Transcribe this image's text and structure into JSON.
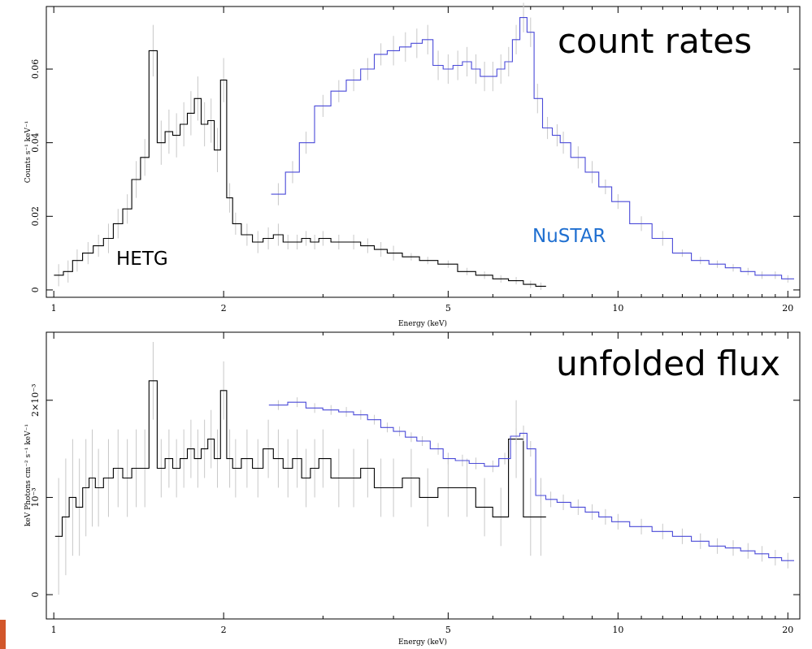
{
  "chart_data": [
    {
      "type": "line",
      "annotation": "count rates",
      "xlabel": "Energy (keV)",
      "ylabel": "Counts s⁻¹ keV⁻¹",
      "x_scale": "log",
      "xlim": [
        0.97,
        21
      ],
      "ylim": [
        -0.002,
        0.077
      ],
      "x_ticks": [
        1,
        2,
        5,
        10,
        20
      ],
      "y_ticks": [
        0,
        0.02,
        0.04,
        0.06
      ],
      "y_tick_labels": [
        "0",
        "0.02",
        "0.04",
        "0.06"
      ],
      "series": [
        {
          "name": "HETG",
          "color": "#000000",
          "x": [
            1.02,
            1.06,
            1.1,
            1.15,
            1.2,
            1.25,
            1.3,
            1.35,
            1.4,
            1.45,
            1.5,
            1.55,
            1.6,
            1.65,
            1.7,
            1.75,
            1.8,
            1.85,
            1.9,
            1.95,
            2.0,
            2.05,
            2.1,
            2.2,
            2.3,
            2.4,
            2.5,
            2.6,
            2.7,
            2.8,
            2.9,
            3.0,
            3.2,
            3.4,
            3.6,
            3.8,
            4.0,
            4.3,
            4.6,
            5.0,
            5.4,
            5.8,
            6.2,
            6.6,
            7.0,
            7.3
          ],
          "y": [
            0.004,
            0.005,
            0.008,
            0.01,
            0.012,
            0.014,
            0.018,
            0.022,
            0.03,
            0.036,
            0.065,
            0.04,
            0.043,
            0.042,
            0.045,
            0.048,
            0.052,
            0.045,
            0.046,
            0.038,
            0.057,
            0.025,
            0.018,
            0.015,
            0.013,
            0.014,
            0.015,
            0.013,
            0.013,
            0.014,
            0.013,
            0.014,
            0.013,
            0.013,
            0.012,
            0.011,
            0.01,
            0.009,
            0.008,
            0.007,
            0.005,
            0.004,
            0.003,
            0.0025,
            0.0015,
            0.001
          ],
          "err": [
            0.003,
            0.003,
            0.003,
            0.003,
            0.003,
            0.004,
            0.004,
            0.004,
            0.005,
            0.005,
            0.007,
            0.006,
            0.006,
            0.006,
            0.006,
            0.006,
            0.006,
            0.006,
            0.006,
            0.006,
            0.006,
            0.004,
            0.003,
            0.003,
            0.003,
            0.003,
            0.003,
            0.002,
            0.002,
            0.002,
            0.002,
            0.002,
            0.002,
            0.002,
            0.002,
            0.002,
            0.002,
            0.001,
            0.001,
            0.001,
            0.001,
            0.001,
            0.001,
            0.001,
            0.001,
            0.001
          ]
        },
        {
          "name": "NuSTAR",
          "color": "#4a4ad8",
          "x": [
            2.5,
            2.65,
            2.8,
            3.0,
            3.2,
            3.4,
            3.6,
            3.8,
            4.0,
            4.2,
            4.4,
            4.6,
            4.8,
            5.0,
            5.2,
            5.4,
            5.6,
            5.8,
            6.0,
            6.2,
            6.4,
            6.6,
            6.8,
            7.0,
            7.2,
            7.5,
            7.8,
            8.0,
            8.5,
            9.0,
            9.5,
            10.0,
            11.0,
            12.0,
            13.0,
            14.0,
            15.0,
            16.0,
            17.0,
            18.0,
            19.0,
            20.0
          ],
          "y": [
            0.026,
            0.032,
            0.04,
            0.05,
            0.054,
            0.057,
            0.06,
            0.064,
            0.065,
            0.066,
            0.067,
            0.068,
            0.061,
            0.06,
            0.061,
            0.062,
            0.06,
            0.058,
            0.058,
            0.06,
            0.062,
            0.068,
            0.074,
            0.07,
            0.052,
            0.044,
            0.042,
            0.04,
            0.036,
            0.032,
            0.028,
            0.024,
            0.018,
            0.014,
            0.01,
            0.008,
            0.007,
            0.006,
            0.005,
            0.004,
            0.004,
            0.003
          ],
          "err": [
            0.003,
            0.003,
            0.003,
            0.003,
            0.003,
            0.003,
            0.003,
            0.003,
            0.004,
            0.004,
            0.004,
            0.004,
            0.004,
            0.004,
            0.004,
            0.004,
            0.004,
            0.004,
            0.004,
            0.004,
            0.004,
            0.004,
            0.004,
            0.004,
            0.004,
            0.003,
            0.003,
            0.003,
            0.003,
            0.003,
            0.002,
            0.002,
            0.002,
            0.002,
            0.001,
            0.001,
            0.001,
            0.001,
            0.001,
            0.001,
            0.001,
            0.001
          ]
        }
      ]
    },
    {
      "type": "line",
      "annotation": "unfolded flux",
      "xlabel": "Energy (keV)",
      "ylabel": "keV Photons cm⁻² s⁻¹ keV⁻¹",
      "x_scale": "log",
      "xlim": [
        0.97,
        21
      ],
      "ylim": [
        -0.00025,
        0.0027
      ],
      "x_ticks": [
        1,
        2,
        5,
        10,
        20
      ],
      "y_ticks": [
        0,
        0.001,
        0.002
      ],
      "y_tick_labels": [
        "0",
        "10⁻³",
        "2×10⁻³"
      ],
      "series": [
        {
          "name": "HETG",
          "color": "#000000",
          "x": [
            1.02,
            1.05,
            1.08,
            1.11,
            1.14,
            1.17,
            1.2,
            1.25,
            1.3,
            1.35,
            1.4,
            1.45,
            1.5,
            1.55,
            1.6,
            1.65,
            1.7,
            1.75,
            1.8,
            1.85,
            1.9,
            1.95,
            2.0,
            2.05,
            2.1,
            2.2,
            2.3,
            2.4,
            2.5,
            2.6,
            2.7,
            2.8,
            2.9,
            3.0,
            3.2,
            3.4,
            3.6,
            3.8,
            4.0,
            4.3,
            4.6,
            5.0,
            5.4,
            5.8,
            6.2,
            6.6,
            7.0,
            7.3
          ],
          "y": [
            0.0006,
            0.0008,
            0.001,
            0.0009,
            0.0011,
            0.0012,
            0.0011,
            0.0012,
            0.0013,
            0.0012,
            0.0013,
            0.0013,
            0.0022,
            0.0013,
            0.0014,
            0.0013,
            0.0014,
            0.0015,
            0.0014,
            0.0015,
            0.0016,
            0.0014,
            0.0021,
            0.0014,
            0.0013,
            0.0014,
            0.0013,
            0.0015,
            0.0014,
            0.0013,
            0.0014,
            0.0012,
            0.0013,
            0.0014,
            0.0012,
            0.0012,
            0.0013,
            0.0011,
            0.0011,
            0.0012,
            0.001,
            0.0011,
            0.0011,
            0.0009,
            0.0008,
            0.0016,
            0.0008,
            0.0008
          ],
          "err": [
            0.0006,
            0.0006,
            0.0006,
            0.0005,
            0.0005,
            0.0005,
            0.0004,
            0.0004,
            0.0004,
            0.0004,
            0.0004,
            0.0004,
            0.0004,
            0.0003,
            0.0003,
            0.0003,
            0.0003,
            0.0003,
            0.0003,
            0.0003,
            0.0003,
            0.0003,
            0.0003,
            0.0003,
            0.0003,
            0.0003,
            0.0003,
            0.0003,
            0.0003,
            0.0003,
            0.0003,
            0.0003,
            0.0003,
            0.0003,
            0.0003,
            0.0003,
            0.0003,
            0.0003,
            0.0003,
            0.0003,
            0.0003,
            0.0003,
            0.0003,
            0.0003,
            0.0003,
            0.0004,
            0.0004,
            0.0004
          ]
        },
        {
          "name": "NuSTAR",
          "color": "#4a4ad8",
          "x": [
            2.5,
            2.7,
            2.9,
            3.1,
            3.3,
            3.5,
            3.7,
            3.9,
            4.1,
            4.3,
            4.5,
            4.8,
            5.0,
            5.3,
            5.6,
            6.0,
            6.3,
            6.6,
            6.8,
            7.0,
            7.3,
            7.6,
            8.0,
            8.5,
            9.0,
            9.5,
            10.0,
            11.0,
            12.0,
            13.0,
            14.0,
            15.0,
            16.0,
            17.0,
            18.0,
            19.0,
            20.0
          ],
          "y": [
            0.00195,
            0.00198,
            0.00192,
            0.0019,
            0.00188,
            0.00185,
            0.0018,
            0.00172,
            0.00168,
            0.00162,
            0.00158,
            0.0015,
            0.0014,
            0.00138,
            0.00135,
            0.00132,
            0.0014,
            0.00163,
            0.00166,
            0.0015,
            0.00102,
            0.00098,
            0.00095,
            0.0009,
            0.00085,
            0.0008,
            0.00075,
            0.0007,
            0.00065,
            0.0006,
            0.00055,
            0.0005,
            0.00048,
            0.00045,
            0.00042,
            0.00038,
            0.00035
          ],
          "err": [
            5e-05,
            5e-05,
            5e-05,
            5e-05,
            5e-05,
            5e-05,
            5e-05,
            5e-05,
            5e-05,
            5e-05,
            5e-05,
            6e-05,
            6e-05,
            6e-05,
            6e-05,
            6e-05,
            6e-05,
            8e-05,
            8e-05,
            8e-05,
            8e-05,
            8e-05,
            8e-05,
            8e-05,
            8e-05,
            8e-05,
            8e-05,
            8e-05,
            8e-05,
            8e-05,
            8e-05,
            8e-05,
            8e-05,
            8e-05,
            8e-05,
            8e-05,
            8e-05
          ]
        }
      ]
    }
  ]
}
